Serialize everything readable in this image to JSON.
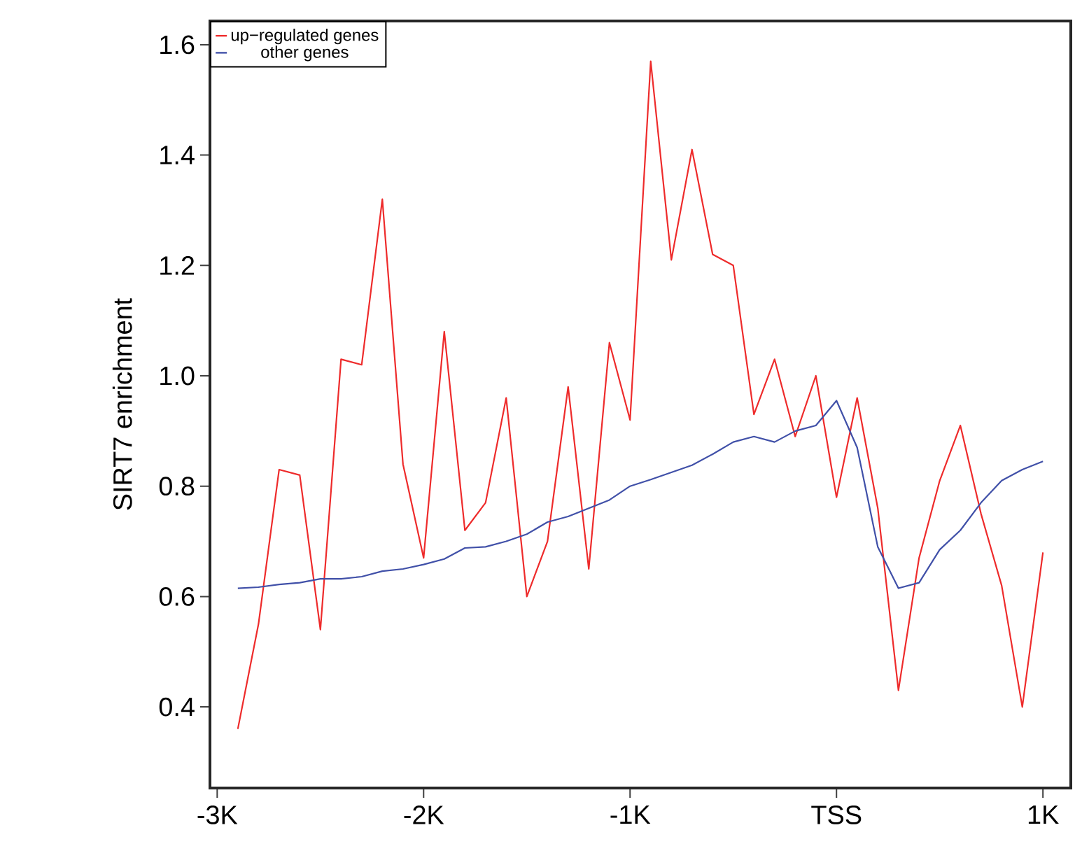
{
  "chart_data": {
    "type": "line",
    "ylabel": "SIRT7 enrichment",
    "x": [
      -2900,
      -2800,
      -2700,
      -2600,
      -2500,
      -2400,
      -2300,
      -2200,
      -2100,
      -2000,
      -1900,
      -1800,
      -1700,
      -1600,
      -1500,
      -1400,
      -1300,
      -1200,
      -1100,
      -1000,
      -900,
      -800,
      -700,
      -600,
      -500,
      -400,
      -300,
      -200,
      -100,
      0,
      100,
      200,
      300,
      400,
      500,
      600,
      700,
      800,
      900,
      1000
    ],
    "series": [
      {
        "name": "up−regulated genes",
        "color": "#ee2b2b",
        "values": [
          0.36,
          0.55,
          0.83,
          0.82,
          0.54,
          1.03,
          1.02,
          1.32,
          0.84,
          0.67,
          1.08,
          0.72,
          0.77,
          0.96,
          0.6,
          0.7,
          0.98,
          0.65,
          1.06,
          0.92,
          1.57,
          1.21,
          1.41,
          1.22,
          1.2,
          0.93,
          1.03,
          0.89,
          1.0,
          0.78,
          0.96,
          0.76,
          0.43,
          0.67,
          0.81,
          0.91,
          0.75,
          0.62,
          0.4,
          0.68
        ]
      },
      {
        "name": "other genes",
        "color": "#4050a8",
        "values": [
          0.615,
          0.617,
          0.622,
          0.625,
          0.632,
          0.632,
          0.636,
          0.646,
          0.65,
          0.658,
          0.668,
          0.688,
          0.69,
          0.7,
          0.713,
          0.735,
          0.745,
          0.76,
          0.775,
          0.8,
          0.812,
          0.825,
          0.838,
          0.858,
          0.88,
          0.89,
          0.88,
          0.9,
          0.91,
          0.955,
          0.87,
          0.69,
          0.615,
          0.625,
          0.685,
          0.72,
          0.77,
          0.81,
          0.83,
          0.845
        ]
      }
    ],
    "xlim": [
      -3035,
      1135
    ],
    "ylim": [
      0.253,
      1.643
    ],
    "xticks": [
      {
        "value": -3000,
        "label": "-3K"
      },
      {
        "value": -2000,
        "label": "-2K"
      },
      {
        "value": -1000,
        "label": "-1K"
      },
      {
        "value": 0,
        "label": "TSS"
      },
      {
        "value": 1000,
        "label": "1K"
      }
    ],
    "yticks": [
      0.4,
      0.6,
      0.8,
      {
        "value": 1.0,
        "label": "1.0"
      },
      1.2,
      1.4,
      1.6
    ],
    "grid": false,
    "legend": "top left",
    "marker": "none",
    "line_style": "solid"
  }
}
